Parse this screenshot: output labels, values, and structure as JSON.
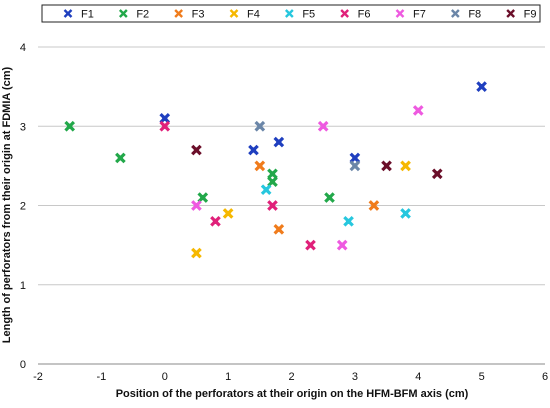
{
  "chart_data": {
    "type": "scatter",
    "title": "",
    "xlabel": "Position of the perforators at their origin on the HFM-BFM axis (cm)",
    "ylabel": "Length of perforators from their origin at FDMIA (cm)",
    "xlim": [
      -2,
      6
    ],
    "ylim": [
      0,
      4
    ],
    "xticks": [
      -2,
      -1,
      0,
      1,
      2,
      3,
      4,
      5,
      6
    ],
    "yticks": [
      0,
      1,
      2,
      3,
      4
    ],
    "grid": "horizontal",
    "legend_position": "top",
    "marker": "x",
    "series": [
      {
        "name": "F1",
        "color": "#1f3fbf",
        "points": [
          [
            0,
            3.1
          ],
          [
            1.4,
            2.7
          ],
          [
            1.8,
            2.8
          ],
          [
            3,
            2.6
          ],
          [
            5,
            3.5
          ]
        ]
      },
      {
        "name": "F2",
        "color": "#22a84a",
        "points": [
          [
            -1.5,
            3.0
          ],
          [
            -0.7,
            2.6
          ],
          [
            0.6,
            2.1
          ],
          [
            1.7,
            2.4
          ],
          [
            1.7,
            2.3
          ],
          [
            2.6,
            2.1
          ]
        ]
      },
      {
        "name": "F3",
        "color": "#f07c1c",
        "points": [
          [
            1.5,
            2.5
          ],
          [
            1.8,
            1.7
          ],
          [
            3.3,
            2.0
          ]
        ]
      },
      {
        "name": "F4",
        "color": "#f6b800",
        "points": [
          [
            0.5,
            1.4
          ],
          [
            1.0,
            1.9
          ],
          [
            3.8,
            2.5
          ]
        ]
      },
      {
        "name": "F5",
        "color": "#27c7de",
        "points": [
          [
            1.6,
            2.2
          ],
          [
            2.9,
            1.8
          ],
          [
            3.8,
            1.9
          ]
        ]
      },
      {
        "name": "F6",
        "color": "#e0217a",
        "points": [
          [
            0,
            3.0
          ],
          [
            0.8,
            1.8
          ],
          [
            1.7,
            2.0
          ],
          [
            2.3,
            1.5
          ]
        ]
      },
      {
        "name": "F7",
        "color": "#ee5ae0",
        "points": [
          [
            0.5,
            2.0
          ],
          [
            2.5,
            3.0
          ],
          [
            2.8,
            1.5
          ],
          [
            4.0,
            3.2
          ]
        ]
      },
      {
        "name": "F8",
        "color": "#6b86a8",
        "points": [
          [
            1.5,
            3.0
          ],
          [
            3.0,
            2.5
          ]
        ]
      },
      {
        "name": "F9",
        "color": "#6b0f2a",
        "points": [
          [
            0.5,
            2.7
          ],
          [
            3.5,
            2.5
          ],
          [
            4.3,
            2.4
          ]
        ]
      }
    ]
  }
}
